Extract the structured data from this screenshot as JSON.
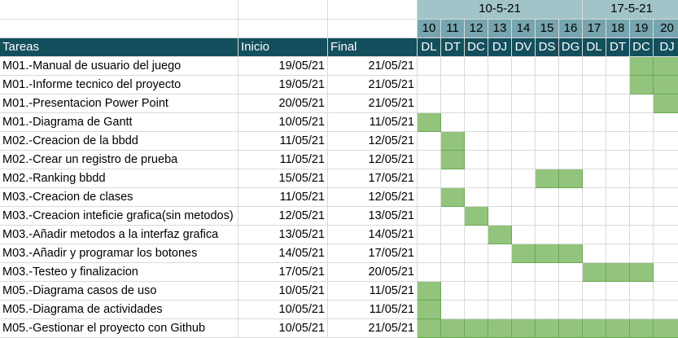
{
  "headers": {
    "task": "Tareas",
    "start": "Inicio",
    "end": "Final"
  },
  "weeks": [
    {
      "label": "10-5-21",
      "span": 7
    },
    {
      "label": "17-5-21",
      "span": 4
    }
  ],
  "days": [
    {
      "num": "10",
      "dow": "DL"
    },
    {
      "num": "11",
      "dow": "DT"
    },
    {
      "num": "12",
      "dow": "DC"
    },
    {
      "num": "13",
      "dow": "DJ"
    },
    {
      "num": "14",
      "dow": "DV"
    },
    {
      "num": "15",
      "dow": "DS"
    },
    {
      "num": "16",
      "dow": "DG"
    },
    {
      "num": "17",
      "dow": "DL"
    },
    {
      "num": "18",
      "dow": "DT"
    },
    {
      "num": "19",
      "dow": "DC"
    },
    {
      "num": "20",
      "dow": "DJ"
    }
  ],
  "tasks": [
    {
      "name": "M01.-Manual de usuario del juego",
      "start": "19/05/21",
      "end": "21/05/21",
      "active": [
        9,
        10
      ]
    },
    {
      "name": "M01.-Informe tecnico del proyecto",
      "start": "19/05/21",
      "end": "21/05/21",
      "active": [
        9,
        10
      ]
    },
    {
      "name": "M01.-Presentacion Power Point",
      "start": "20/05/21",
      "end": "21/05/21",
      "active": [
        10
      ]
    },
    {
      "name": "M01.-Diagrama de Gantt",
      "start": "10/05/21",
      "end": "11/05/21",
      "active": [
        0
      ]
    },
    {
      "name": "M02.-Creacion de la bbdd",
      "start": "11/05/21",
      "end": "12/05/21",
      "active": [
        1
      ]
    },
    {
      "name": "M02.-Crear un registro de prueba",
      "start": "11/05/21",
      "end": "12/05/21",
      "active": [
        1
      ]
    },
    {
      "name": "M02.-Ranking bbdd",
      "start": "15/05/21",
      "end": "17/05/21",
      "active": [
        5,
        6
      ]
    },
    {
      "name": "M03.-Creacion de clases",
      "start": "11/05/21",
      "end": "12/05/21",
      "active": [
        1
      ]
    },
    {
      "name": "M03.-Creacion inteficie grafica(sin metodos)",
      "start": "12/05/21",
      "end": "13/05/21",
      "active": [
        2
      ]
    },
    {
      "name": "M03.-Añadir metodos a la interfaz grafica",
      "start": "13/05/21",
      "end": "14/05/21",
      "active": [
        3
      ]
    },
    {
      "name": "M03.-Añadir y programar los botones",
      "start": "14/05/21",
      "end": "17/05/21",
      "active": [
        4,
        5,
        6
      ]
    },
    {
      "name": "M03.-Testeo y finalizacion",
      "start": "17/05/21",
      "end": "20/05/21",
      "active": [
        7,
        8,
        9
      ]
    },
    {
      "name": "M05.-Diagrama casos de uso",
      "start": "10/05/21",
      "end": "11/05/21",
      "active": [
        0
      ]
    },
    {
      "name": "M05.-Diagrama de actividades",
      "start": "10/05/21",
      "end": "11/05/21",
      "active": [
        0
      ]
    },
    {
      "name": "M05.-Gestionar el proyecto con Github",
      "start": "10/05/21",
      "end": "21/05/21",
      "active": [
        0,
        1,
        2,
        3,
        4,
        5,
        6,
        7,
        8,
        9,
        10
      ]
    }
  ],
  "colors": {
    "header_dark": "#134f5c",
    "header_mid": "#76a5af",
    "header_light": "#a2c4c9",
    "bar": "#93c47d"
  }
}
